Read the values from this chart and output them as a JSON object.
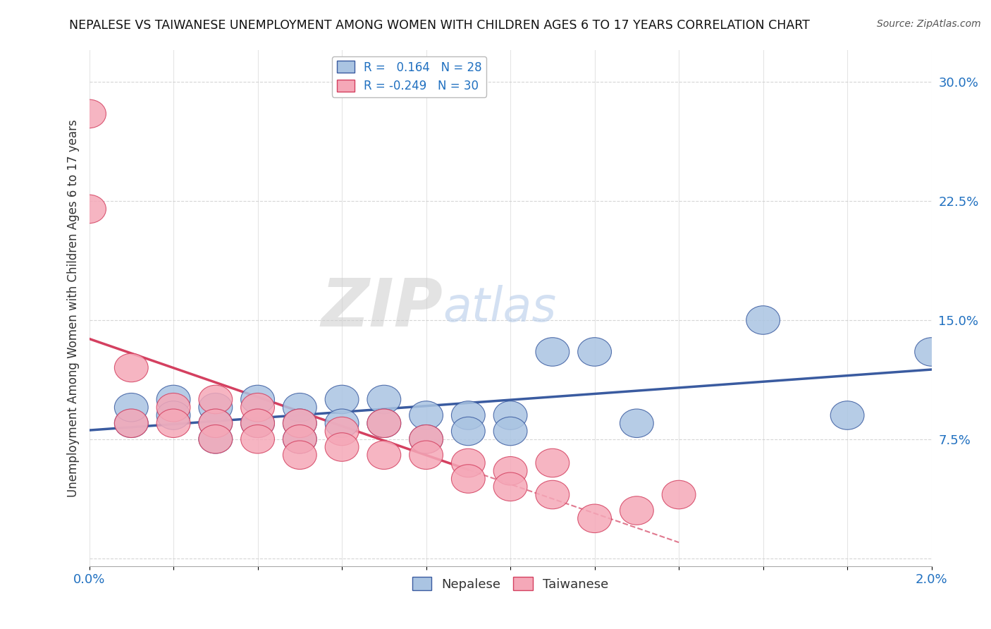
{
  "title": "NEPALESE VS TAIWANESE UNEMPLOYMENT AMONG WOMEN WITH CHILDREN AGES 6 TO 17 YEARS CORRELATION CHART",
  "source": "Source: ZipAtlas.com",
  "ylabel": "Unemployment Among Women with Children Ages 6 to 17 years",
  "xlim": [
    0.0,
    0.02
  ],
  "ylim": [
    -0.005,
    0.32
  ],
  "xticks": [
    0.0,
    0.002,
    0.004,
    0.006,
    0.008,
    0.01,
    0.012,
    0.014,
    0.016,
    0.018,
    0.02
  ],
  "xticklabels": [
    "0.0%",
    "",
    "",
    "",
    "",
    "",
    "",
    "",
    "",
    "",
    "2.0%"
  ],
  "yticks": [
    0.0,
    0.075,
    0.15,
    0.225,
    0.3
  ],
  "yticklabels": [
    "",
    "7.5%",
    "15.0%",
    "22.5%",
    "30.0%"
  ],
  "r_nepalese": 0.164,
  "n_nepalese": 28,
  "r_taiwanese": -0.249,
  "n_taiwanese": 30,
  "nepalese_color": "#aac4e2",
  "taiwanese_color": "#f5a8b8",
  "nepalese_line_color": "#3a5ba0",
  "taiwanese_line_color": "#d44060",
  "nepalese_x": [
    0.001,
    0.001,
    0.002,
    0.002,
    0.003,
    0.003,
    0.003,
    0.004,
    0.004,
    0.005,
    0.005,
    0.005,
    0.006,
    0.006,
    0.007,
    0.007,
    0.008,
    0.008,
    0.009,
    0.009,
    0.01,
    0.01,
    0.011,
    0.012,
    0.013,
    0.016,
    0.018,
    0.02
  ],
  "nepalese_y": [
    0.085,
    0.095,
    0.1,
    0.09,
    0.095,
    0.085,
    0.075,
    0.1,
    0.085,
    0.095,
    0.085,
    0.075,
    0.1,
    0.085,
    0.1,
    0.085,
    0.09,
    0.075,
    0.09,
    0.08,
    0.09,
    0.08,
    0.13,
    0.13,
    0.085,
    0.15,
    0.09,
    0.13
  ],
  "taiwanese_x": [
    0.0,
    0.0,
    0.001,
    0.001,
    0.002,
    0.002,
    0.003,
    0.003,
    0.003,
    0.004,
    0.004,
    0.004,
    0.005,
    0.005,
    0.005,
    0.006,
    0.006,
    0.007,
    0.007,
    0.008,
    0.008,
    0.009,
    0.009,
    0.01,
    0.01,
    0.011,
    0.011,
    0.012,
    0.013,
    0.014
  ],
  "taiwanese_y": [
    0.28,
    0.22,
    0.12,
    0.085,
    0.095,
    0.085,
    0.1,
    0.085,
    0.075,
    0.095,
    0.085,
    0.075,
    0.085,
    0.075,
    0.065,
    0.08,
    0.07,
    0.085,
    0.065,
    0.075,
    0.065,
    0.06,
    0.05,
    0.055,
    0.045,
    0.06,
    0.04,
    0.025,
    0.03,
    0.04
  ],
  "watermark_zip": "ZIP",
  "watermark_atlas": "atlas",
  "background_color": "#ffffff",
  "grid_color": "#cccccc"
}
